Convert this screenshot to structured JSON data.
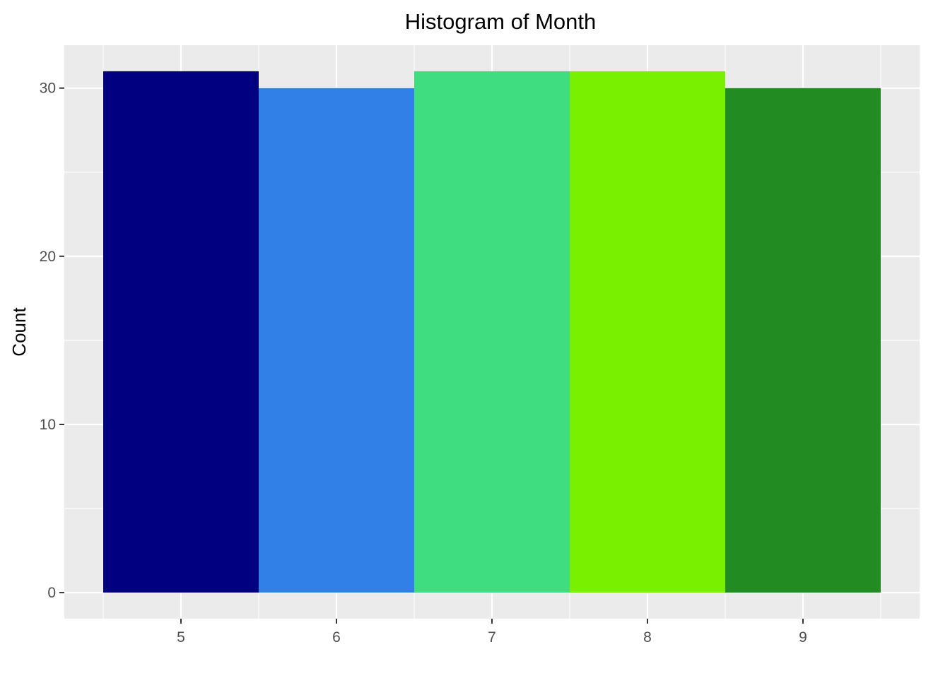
{
  "chart_data": {
    "type": "bar",
    "title": "Histogram of Month",
    "xlabel": "",
    "ylabel": "Count",
    "bins": [
      {
        "center": 5,
        "start": 4.5,
        "end": 5.5,
        "count": 31,
        "color": "#000080"
      },
      {
        "center": 6,
        "start": 5.5,
        "end": 6.5,
        "count": 30,
        "color": "#3080E8"
      },
      {
        "center": 7,
        "start": 6.5,
        "end": 7.5,
        "count": 31,
        "color": "#40DC80"
      },
      {
        "center": 8,
        "start": 7.5,
        "end": 8.5,
        "count": 31,
        "color": "#78F000"
      },
      {
        "center": 9,
        "start": 8.5,
        "end": 9.5,
        "count": 30,
        "color": "#228B22"
      }
    ],
    "categories": [
      "5",
      "6",
      "7",
      "8",
      "9"
    ],
    "values": [
      31,
      30,
      31,
      31,
      30
    ],
    "x_ticks": [
      5,
      6,
      7,
      8,
      9
    ],
    "y_ticks": [
      0,
      10,
      20,
      30
    ],
    "xlim": [
      4.25,
      9.75
    ],
    "ylim": [
      -1.55,
      32.55
    ],
    "grid": true,
    "legend": "none",
    "panel_background": "#EBEBEB"
  }
}
